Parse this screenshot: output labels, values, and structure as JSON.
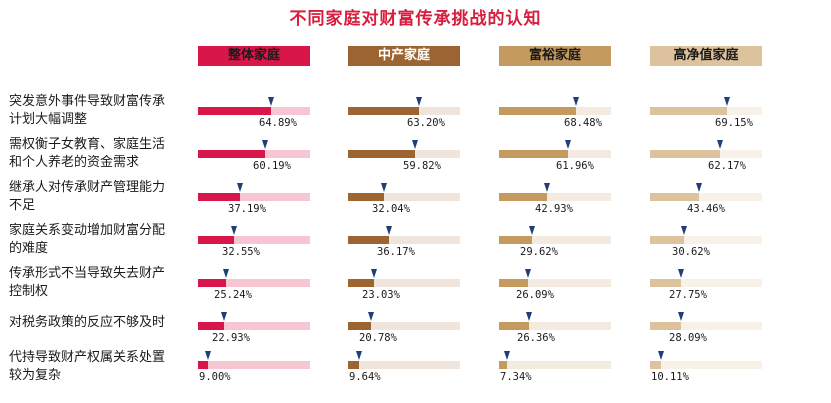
{
  "chart_data": {
    "type": "bar",
    "title": "不同家庭对财富传承挑战的认知",
    "series": [
      {
        "name": "整体家庭",
        "color": "#d9164a",
        "track": "#f6c7d2",
        "header_text_color": "#1a1a1a",
        "values": [
          "64.89%",
          "60.19%",
          "37.19%",
          "32.55%",
          "25.24%",
          "22.93%",
          "9.00%"
        ]
      },
      {
        "name": "中产家庭",
        "color": "#9c6431",
        "track": "#f0e5dc",
        "header_text_color": "#ffffff",
        "values": [
          "63.20%",
          "59.82%",
          "32.04%",
          "36.17%",
          "23.03%",
          "20.78%",
          "9.64%"
        ]
      },
      {
        "name": "富裕家庭",
        "color": "#c49a5e",
        "track": "#f3ebdf",
        "header_text_color": "#1a1a1a",
        "values": [
          "68.48%",
          "61.96%",
          "42.93%",
          "29.62%",
          "26.09%",
          "26.36%",
          "7.34%"
        ]
      },
      {
        "name": "高净值家庭",
        "color": "#dcc39d",
        "track": "#f7f1e7",
        "header_text_color": "#1a1a1a",
        "values": [
          "69.15%",
          "62.17%",
          "43.46%",
          "30.62%",
          "27.75%",
          "28.09%",
          "10.11%"
        ]
      }
    ],
    "categories": [
      {
        "line1": "突发意外事件导致财富传承",
        "line2": "计划大幅调整"
      },
      {
        "line1": "需权衡子女教育、家庭生活",
        "line2": "和个人养老的资金需求"
      },
      {
        "line1": "继承人对传承财产管理能力",
        "line2": "不足"
      },
      {
        "line1": "家庭关系变动增加财富分配",
        "line2": "的难度"
      },
      {
        "line1": "传承形式不当导致失去财产",
        "line2": "控制权"
      },
      {
        "line1": "对税务政策的反应不够及时",
        "line2": ""
      },
      {
        "line1": "代持导致财产权属关系处置",
        "line2": "较为复杂"
      }
    ],
    "xlim": [
      0,
      100
    ],
    "marker_color": "#1f3f7a"
  }
}
